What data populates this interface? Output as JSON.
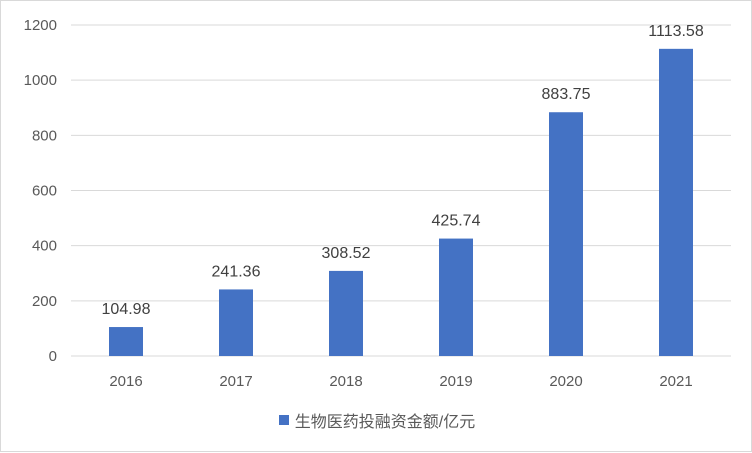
{
  "chart_data": {
    "type": "bar",
    "categories": [
      "2016",
      "2017",
      "2018",
      "2019",
      "2020",
      "2021"
    ],
    "series": [
      {
        "name": "生物医药投融资金额/亿元",
        "values": [
          104.98,
          241.36,
          308.52,
          425.74,
          883.75,
          1113.58
        ],
        "color": "#4472C4"
      }
    ],
    "data_labels": [
      "104.98",
      "241.36",
      "308.52",
      "425.74",
      "883.75",
      "1113.58"
    ],
    "ylim": [
      0,
      1200
    ],
    "yticks": [
      "0",
      "200",
      "400",
      "600",
      "800",
      "1000",
      "1200"
    ],
    "grid": true,
    "legend": "bottom-center",
    "title": "",
    "xlabel": "",
    "ylabel": ""
  }
}
